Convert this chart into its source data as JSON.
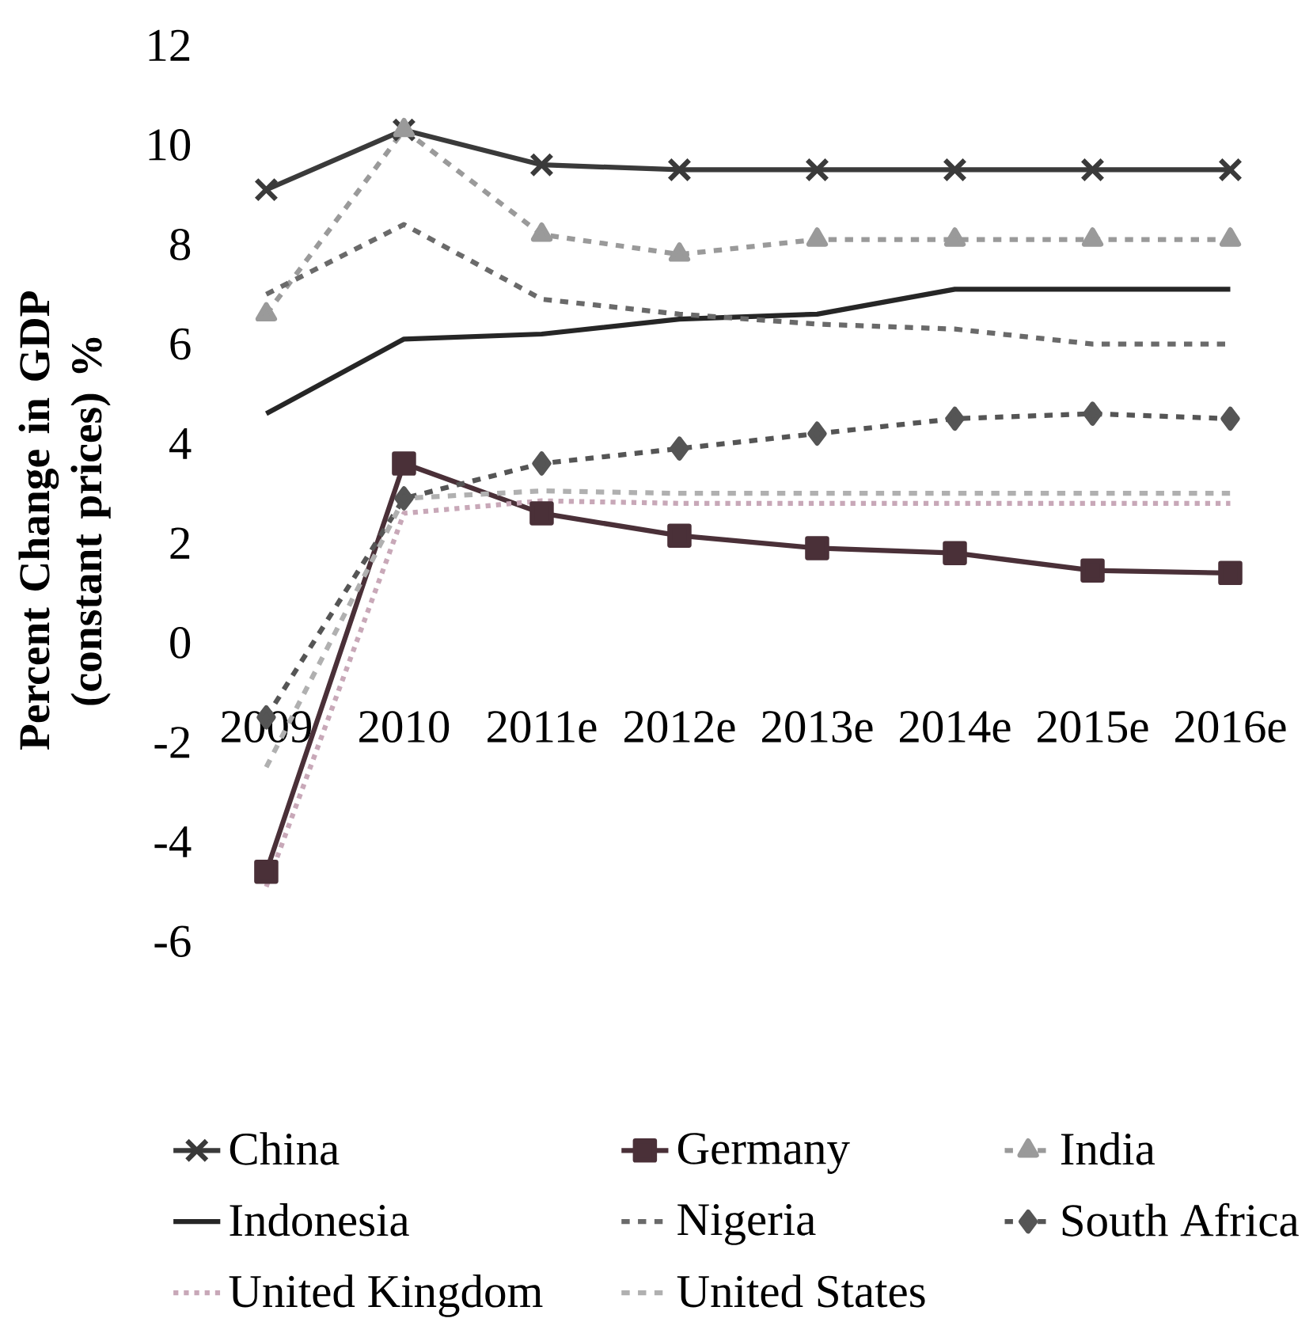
{
  "chart_data": {
    "type": "line",
    "ylabel": "Percent Change in GDP (constant prices) %",
    "categories": [
      "2009",
      "2010",
      "2011e",
      "2012e",
      "2013e",
      "2014e",
      "2015e",
      "2016e"
    ],
    "series": [
      {
        "name": "China",
        "color": "#3a3a3a",
        "marker": "cross",
        "line_style": "solid",
        "values": [
          9.1,
          10.3,
          9.6,
          9.5,
          9.5,
          9.5,
          9.5,
          9.5
        ]
      },
      {
        "name": "Germany",
        "color": "#4a3038",
        "marker": "square",
        "line_style": "solid",
        "values": [
          -4.6,
          3.6,
          2.6,
          2.15,
          1.9,
          1.8,
          1.45,
          1.4
        ]
      },
      {
        "name": "India",
        "color": "#9a9a9a",
        "marker": "triangle",
        "line_style": "dashed",
        "values": [
          6.6,
          10.3,
          8.2,
          7.8,
          8.1,
          8.1,
          8.1,
          8.1
        ]
      },
      {
        "name": "Indonesia",
        "color": "#262626",
        "marker": "none",
        "line_style": "solid",
        "values": [
          4.6,
          6.1,
          6.2,
          6.5,
          6.6,
          7.1,
          7.1,
          7.1
        ]
      },
      {
        "name": "Nigeria",
        "color": "#6a6a6a",
        "marker": "none",
        "line_style": "dashed",
        "values": [
          7.0,
          8.4,
          6.9,
          6.6,
          6.4,
          6.3,
          6.0,
          6.0
        ]
      },
      {
        "name": "South Africa",
        "color": "#555555",
        "marker": "diamond",
        "line_style": "dashed",
        "values": [
          -1.5,
          2.9,
          3.6,
          3.9,
          4.2,
          4.5,
          4.6,
          4.5
        ]
      },
      {
        "name": "United Kingdom",
        "color": "#c8a8b8",
        "marker": "none",
        "line_style": "dotted",
        "values": [
          -4.9,
          2.6,
          2.85,
          2.8,
          2.8,
          2.8,
          2.8,
          2.8
        ]
      },
      {
        "name": "United States",
        "color": "#b0b0b0",
        "marker": "none",
        "line_style": "dashed",
        "values": [
          -2.5,
          2.9,
          3.05,
          3.0,
          3.0,
          3.0,
          3.0,
          3.0
        ]
      }
    ],
    "ylim": [
      -6,
      12
    ],
    "yticks": [
      -6,
      -4,
      -2,
      0,
      2,
      4,
      6,
      8,
      10,
      12
    ],
    "grid": false,
    "legend": "bottom"
  }
}
